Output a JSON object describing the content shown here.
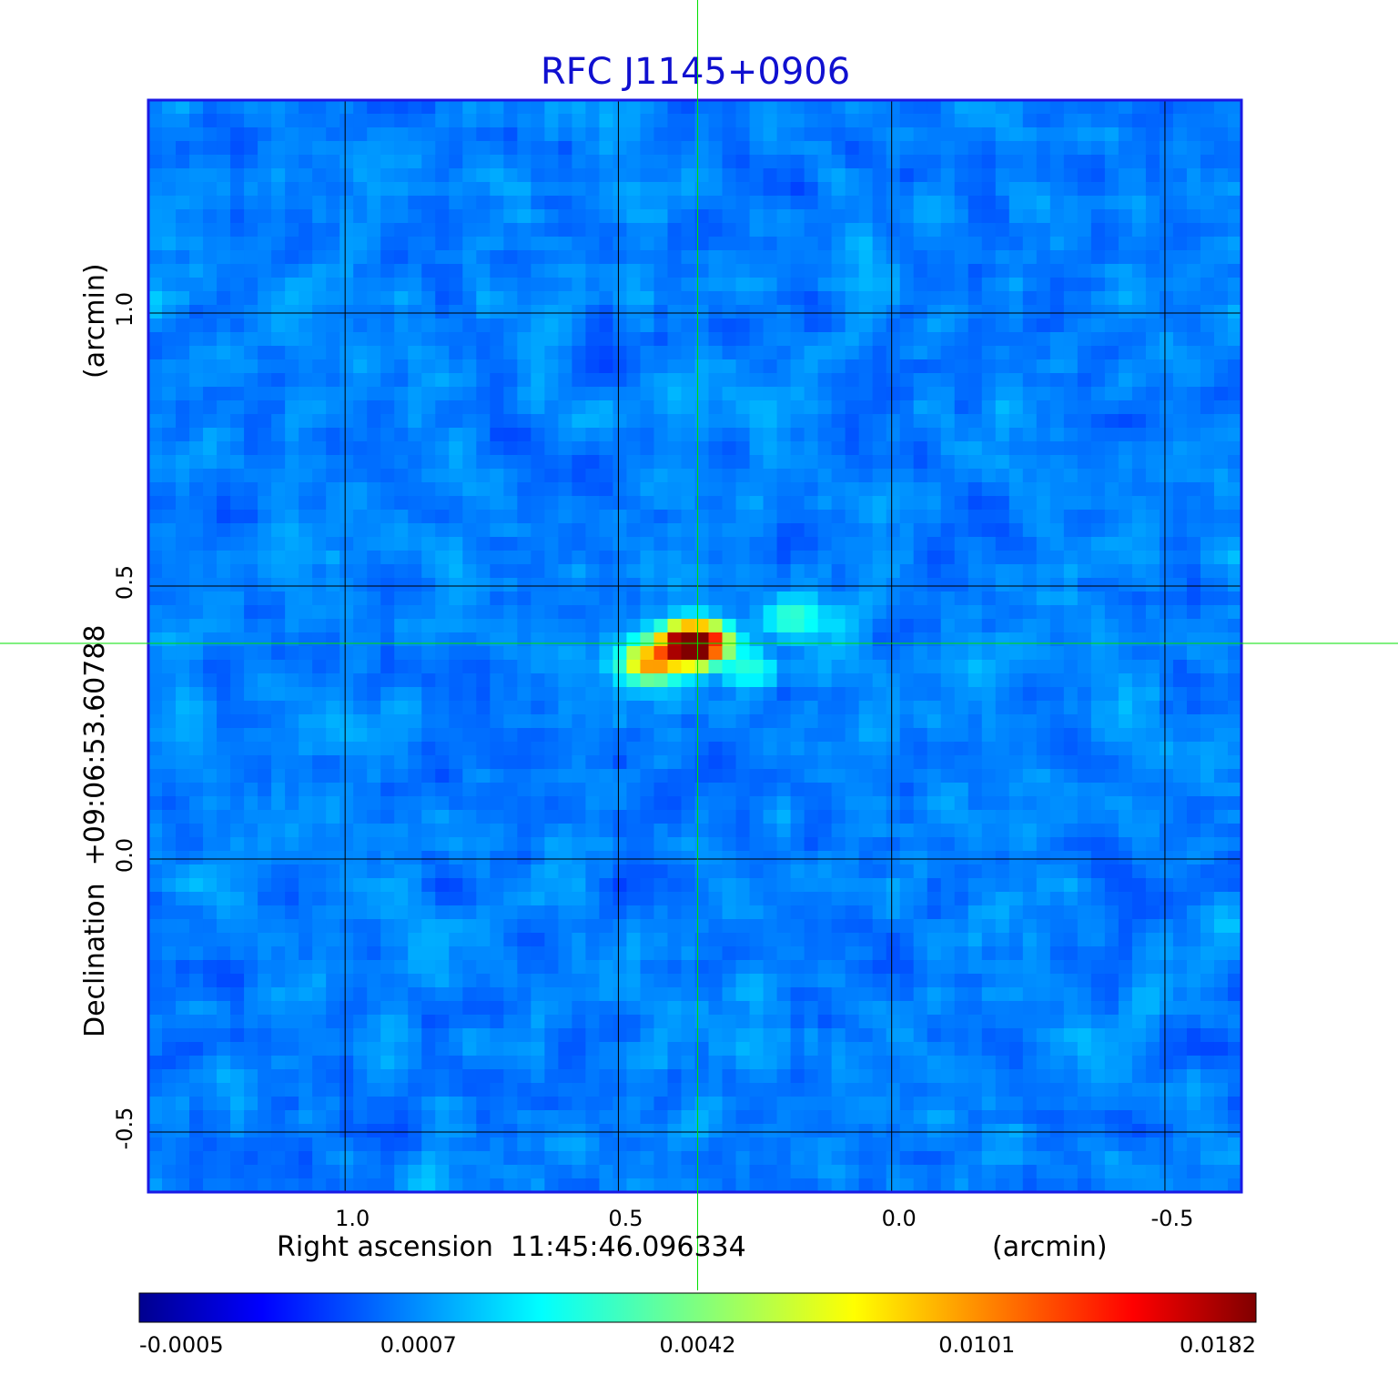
{
  "chart_data": {
    "type": "heatmap",
    "title": "RFC J1145+0906",
    "xlabel": "Right ascension  11:45:46.096334",
    "xunit": "(arcmin)",
    "ylabel": "Declination  +09:06:53.60788",
    "yunit": "(arcmin)",
    "x_ticks": [
      "1.0",
      "0.5",
      "0.0",
      "-0.5"
    ],
    "x_tick_values": [
      1.0,
      0.5,
      0.0,
      -0.5
    ],
    "y_ticks": [
      "1.0",
      "0.5",
      "0.0",
      "-0.5"
    ],
    "y_tick_values": [
      1.0,
      0.5,
      0.0,
      -0.5
    ],
    "xlim": [
      1.36,
      -0.64
    ],
    "ylim": [
      -0.61,
      1.39
    ],
    "grid": true,
    "crosshair": {
      "x": 0.355,
      "y": 0.395,
      "color": "#00e000"
    },
    "colormap": "jet",
    "colorbar_ticks": [
      "-0.0005",
      "0.0007",
      "0.0042",
      "0.0101",
      "0.0182"
    ],
    "colorbar_tick_values": [
      -0.0005,
      0.0007,
      0.0042,
      0.0101,
      0.0182
    ],
    "colorbar_orientation": "horizontal",
    "colorbar_placement": "bottom",
    "background_level": 0.0006,
    "sources": [
      {
        "x": 0.355,
        "y": 0.395,
        "peak": 0.0182
      },
      {
        "x": 0.38,
        "y": 0.39,
        "peak": 0.012
      },
      {
        "x": 0.44,
        "y": 0.36,
        "peak": 0.0085
      },
      {
        "x": 0.18,
        "y": 0.44,
        "peak": 0.0022
      },
      {
        "x": 0.26,
        "y": 0.35,
        "peak": 0.0018
      }
    ]
  }
}
